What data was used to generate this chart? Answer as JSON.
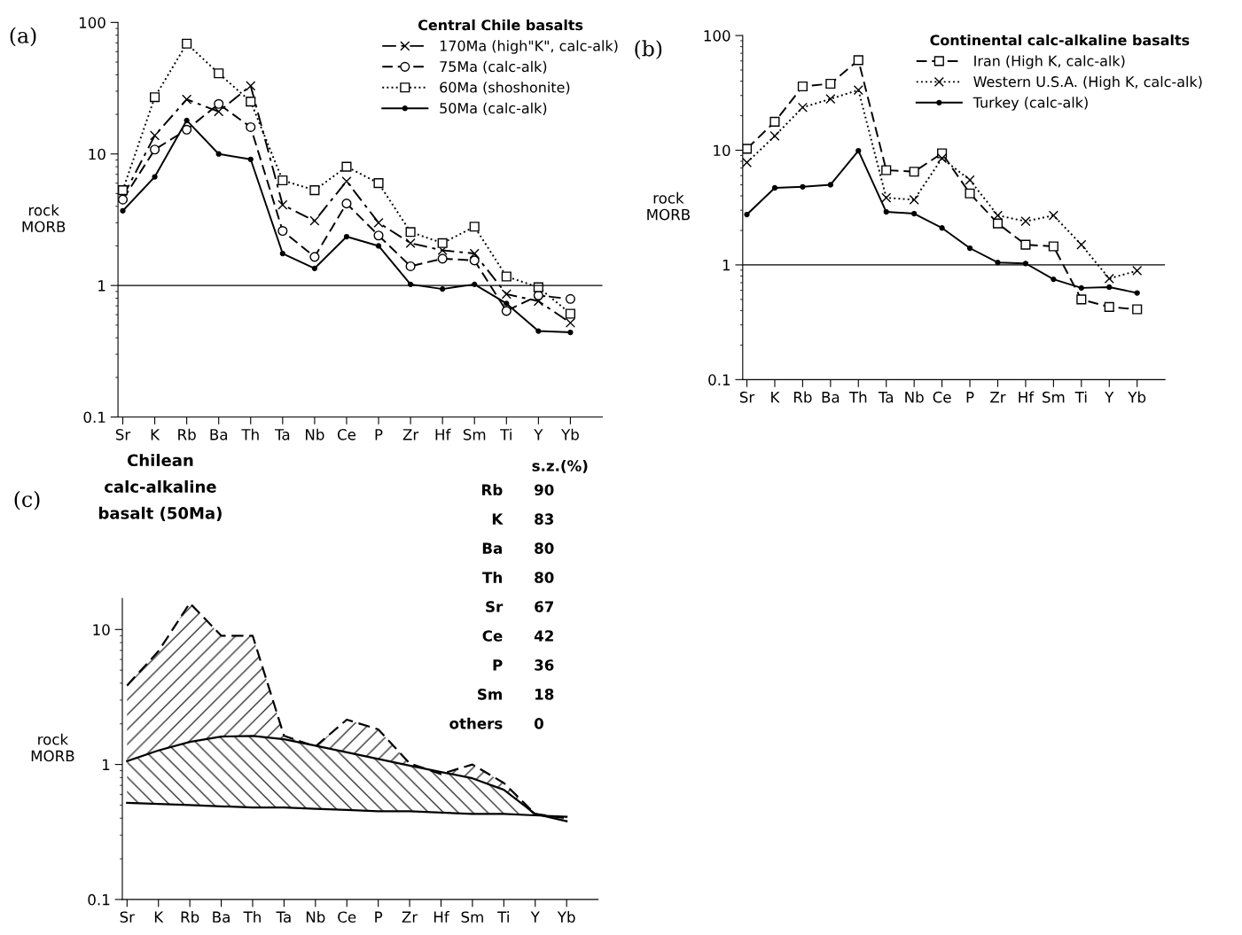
{
  "chart_data": [
    {
      "type": "line",
      "title": "Central Chile basalts",
      "ylabel": "rock\nMORB",
      "log": true,
      "legend": "top right",
      "grid": false,
      "categories": [
        "Sr",
        "K",
        "Rb",
        "Ba",
        "Th",
        "Ta",
        "Nb",
        "Ce",
        "P",
        "Zr",
        "Hf",
        "Sm",
        "Ti",
        "Y",
        "Yb"
      ],
      "ylim": [
        0.1,
        100
      ],
      "yticks": [
        0.1,
        1,
        10,
        100
      ],
      "ref_lines": [
        {
          "axis": "y",
          "value": 1,
          "color": "#000000",
          "line_style": "solid"
        }
      ],
      "annotations": [
        "(a)"
      ],
      "series": [
        {
          "name": "170Ma (high\"K\", calc-alk)",
          "color": "#000000",
          "line_style": "dashdot",
          "marker": "cross",
          "values": [
            4.7,
            13.8,
            26,
            21,
            33,
            4.1,
            3.1,
            6.2,
            3.0,
            2.1,
            1.85,
            1.75,
            0.86,
            0.76,
            0.52
          ]
        },
        {
          "name": "75Ma (calc-alk)",
          "color": "#000000",
          "line_style": "dashed",
          "marker": "circle",
          "values": [
            4.5,
            10.8,
            15.3,
            24,
            16,
            2.6,
            1.65,
            4.2,
            2.4,
            1.4,
            1.6,
            1.55,
            0.64,
            0.84,
            0.79
          ]
        },
        {
          "name": "60Ma (shoshonite)",
          "color": "#000000",
          "line_style": "dotted",
          "marker": "square",
          "values": [
            5.3,
            27,
            69,
            41,
            25,
            6.3,
            5.3,
            8.0,
            6.0,
            2.55,
            2.1,
            2.8,
            1.17,
            0.97,
            0.61
          ]
        },
        {
          "name": "50Ma (calc-alk)",
          "color": "#000000",
          "line_style": "solid",
          "marker": "circle",
          "values": [
            3.7,
            6.7,
            18,
            10,
            9.1,
            1.75,
            1.35,
            2.35,
            2.0,
            1.02,
            0.94,
            1.02,
            0.73,
            0.45,
            0.44
          ]
        }
      ]
    },
    {
      "type": "line",
      "title": "Continental calc-alkaline basalts",
      "ylabel": "rock\nMORB",
      "log": true,
      "legend": "top right",
      "grid": false,
      "categories": [
        "Sr",
        "K",
        "Rb",
        "Ba",
        "Th",
        "Ta",
        "Nb",
        "Ce",
        "P",
        "Zr",
        "Hf",
        "Sm",
        "Ti",
        "Y",
        "Yb"
      ],
      "ylim": [
        0.1,
        100
      ],
      "yticks": [
        0.1,
        1,
        10,
        100
      ],
      "ref_lines": [
        {
          "axis": "y",
          "value": 1,
          "color": "#000000",
          "line_style": "solid"
        }
      ],
      "annotations": [
        "(b)"
      ],
      "series": [
        {
          "name": "Iran (High K, calc-alk)",
          "color": "#000000",
          "line_style": "dashed",
          "marker": "square",
          "values": [
            10.3,
            17.7,
            36,
            38,
            61,
            6.7,
            6.5,
            9.4,
            4.2,
            2.3,
            1.5,
            1.45,
            0.5,
            0.43,
            0.41
          ]
        },
        {
          "name": "Western U.S.A. (High K, calc-alk)",
          "color": "#000000",
          "line_style": "dotted",
          "marker": "cross",
          "values": [
            7.8,
            13.3,
            23.6,
            28,
            33.5,
            3.85,
            3.7,
            8.5,
            5.5,
            2.7,
            2.4,
            2.7,
            1.5,
            0.76,
            0.89
          ]
        },
        {
          "name": "Turkey (calc-alk)",
          "color": "#000000",
          "line_style": "solid",
          "marker": "circle",
          "values": [
            2.75,
            4.7,
            4.8,
            5.0,
            9.9,
            2.9,
            2.8,
            2.1,
            1.4,
            1.05,
            1.03,
            0.75,
            0.63,
            0.64,
            0.57
          ]
        }
      ]
    },
    {
      "type": "area",
      "title": "Chilean\ncalc-alkaline\nbasalt (50Ma)",
      "ylabel": "rock\nMORB",
      "log": true,
      "grid": false,
      "categories": [
        "Sr",
        "K",
        "Rb",
        "Ba",
        "Th",
        "Ta",
        "Nb",
        "Ce",
        "P",
        "Zr",
        "Hf",
        "Sm",
        "Ti",
        "Y",
        "Yb"
      ],
      "ylim": [
        0.1,
        17
      ],
      "yticks": [
        0.1,
        1,
        10
      ],
      "annotations": [
        "(c)",
        "s.z.(%)",
        "Rb 90",
        "K 83",
        "Ba 80",
        "Th 80",
        "Sr 67",
        "Ce 42",
        "P 36",
        "Sm 18",
        "others 0"
      ],
      "series": [
        {
          "type": "area",
          "color": "#000000",
          "line_style": "dashed",
          "values": [
            3.85,
            6.9,
            15.7,
            9.0,
            9.0,
            1.63,
            1.36,
            2.15,
            1.82,
            1.02,
            0.85,
            1.0,
            0.73,
            0.43,
            0.4
          ]
        },
        {
          "type": "area",
          "color": "#000000",
          "line_style": "solid",
          "values": [
            1.06,
            1.27,
            1.47,
            1.61,
            1.63,
            1.54,
            1.38,
            1.23,
            1.1,
            0.98,
            0.88,
            0.79,
            0.65,
            0.43,
            0.38
          ]
        },
        {
          "type": "line",
          "color": "#000000",
          "line_style": "solid",
          "values": [
            0.52,
            0.51,
            0.5,
            0.49,
            0.48,
            0.48,
            0.47,
            0.46,
            0.45,
            0.45,
            0.44,
            0.43,
            0.43,
            0.42,
            0.41
          ]
        }
      ]
    }
  ]
}
